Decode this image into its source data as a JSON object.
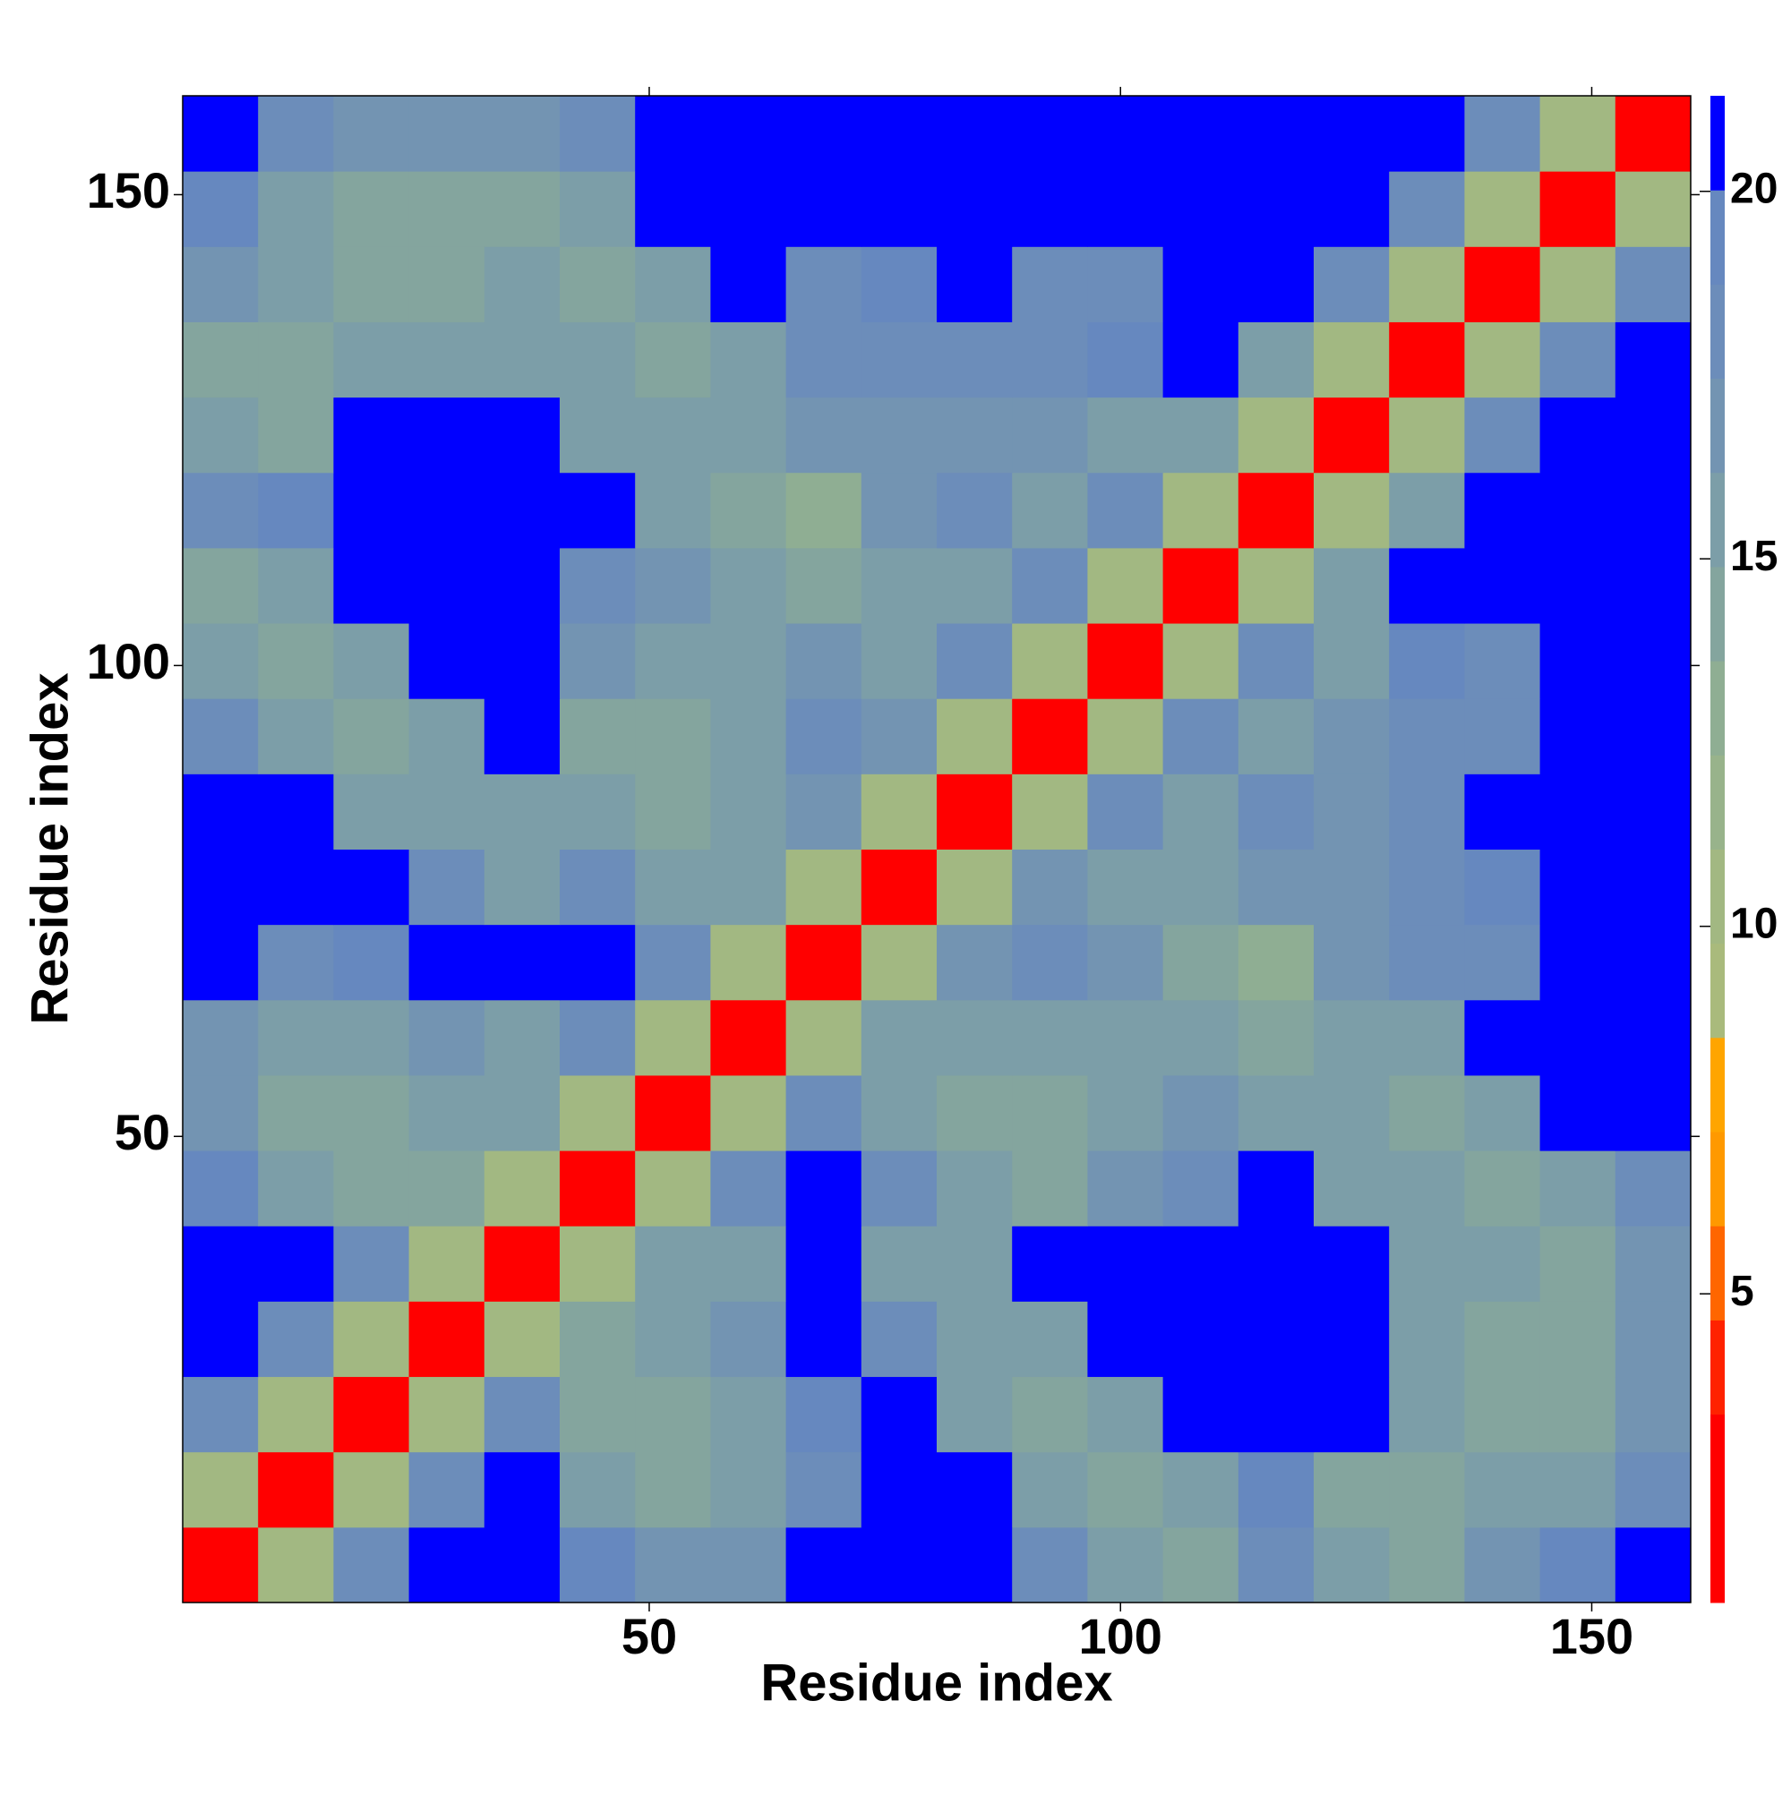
{
  "chart_data": {
    "type": "heatmap",
    "x_label": "Residue index",
    "y_label": "Residue index",
    "x": [
      4.5,
      12.5,
      20.5,
      28.5,
      36.5,
      44.5,
      52.5,
      60.5,
      68.5,
      76.5,
      84.5,
      92.5,
      100.5,
      108.5,
      116.5,
      124.5,
      132.5,
      140.5,
      148.5,
      156.5
    ],
    "y": [
      4.5,
      12.5,
      20.5,
      28.5,
      36.5,
      44.5,
      52.5,
      60.5,
      68.5,
      76.5,
      84.5,
      92.5,
      100.5,
      108.5,
      116.5,
      124.5,
      132.5,
      140.5,
      148.5,
      156.5
    ],
    "z": [
      [
        3,
        11,
        18,
        21,
        21,
        19,
        17,
        17,
        21,
        21,
        21,
        18,
        15,
        14,
        18,
        15,
        14,
        17,
        19,
        21
      ],
      [
        11,
        3,
        11,
        18,
        21,
        16,
        14,
        15,
        18,
        21,
        21,
        15,
        14,
        16,
        19,
        14,
        14,
        15,
        16,
        18
      ],
      [
        18,
        11,
        3,
        11,
        18,
        14,
        14,
        16,
        19,
        21,
        16,
        14,
        15,
        21,
        21,
        21,
        15,
        14,
        14,
        17
      ],
      [
        21,
        18,
        11,
        3,
        11,
        14,
        15,
        17,
        21,
        18,
        15,
        15,
        21,
        21,
        21,
        21,
        16,
        14,
        14,
        17
      ],
      [
        21,
        21,
        18,
        11,
        3,
        11,
        15,
        16,
        21,
        16,
        15,
        21,
        21,
        21,
        21,
        21,
        16,
        15,
        14,
        17
      ],
      [
        19,
        16,
        14,
        14,
        11,
        3,
        11,
        18,
        21,
        18,
        15,
        14,
        17,
        18,
        21,
        16,
        15,
        14,
        15,
        18
      ],
      [
        17,
        14,
        14,
        15,
        15,
        11,
        3,
        11,
        18,
        16,
        14,
        14,
        15,
        17,
        16,
        15,
        14,
        15,
        21,
        21
      ],
      [
        17,
        15,
        16,
        17,
        16,
        18,
        11,
        3,
        11,
        15,
        15,
        15,
        16,
        16,
        14,
        15,
        16,
        21,
        21,
        21
      ],
      [
        21,
        18,
        19,
        21,
        21,
        21,
        18,
        11,
        3,
        11,
        17,
        18,
        17,
        14,
        13,
        17,
        18,
        18,
        21,
        21
      ],
      [
        21,
        21,
        21,
        18,
        16,
        18,
        16,
        15,
        11,
        3,
        11,
        17,
        16,
        16,
        17,
        17,
        18,
        19,
        21,
        21
      ],
      [
        21,
        21,
        16,
        15,
        15,
        15,
        14,
        15,
        17,
        11,
        3,
        11,
        18,
        16,
        18,
        17,
        18,
        21,
        21,
        21
      ],
      [
        18,
        15,
        14,
        15,
        21,
        14,
        14,
        15,
        18,
        17,
        11,
        3,
        11,
        18,
        15,
        17,
        18,
        18,
        21,
        21
      ],
      [
        15,
        14,
        15,
        21,
        21,
        17,
        15,
        16,
        17,
        16,
        18,
        11,
        3,
        11,
        18,
        16,
        19,
        18,
        21,
        21
      ],
      [
        14,
        16,
        21,
        21,
        21,
        18,
        17,
        16,
        14,
        16,
        16,
        18,
        11,
        3,
        11,
        16,
        21,
        21,
        21,
        21
      ],
      [
        18,
        19,
        21,
        21,
        21,
        21,
        16,
        14,
        13,
        17,
        18,
        15,
        18,
        11,
        3,
        11,
        16,
        21,
        21,
        21
      ],
      [
        15,
        14,
        21,
        21,
        21,
        16,
        15,
        15,
        17,
        17,
        17,
        17,
        16,
        16,
        11,
        3,
        11,
        18,
        21,
        21
      ],
      [
        14,
        14,
        15,
        16,
        16,
        15,
        14,
        16,
        18,
        18,
        18,
        18,
        19,
        21,
        16,
        11,
        3,
        11,
        18,
        21
      ],
      [
        17,
        15,
        14,
        14,
        15,
        14,
        15,
        21,
        18,
        19,
        21,
        18,
        18,
        21,
        21,
        18,
        11,
        3,
        11,
        18
      ],
      [
        19,
        16,
        14,
        14,
        14,
        15,
        21,
        21,
        21,
        21,
        21,
        21,
        21,
        21,
        21,
        21,
        18,
        11,
        3,
        11
      ],
      [
        21,
        18,
        17,
        17,
        17,
        18,
        21,
        21,
        21,
        21,
        21,
        21,
        21,
        21,
        21,
        21,
        21,
        18,
        11,
        3
      ]
    ],
    "xlim": [
      0.5,
      160.5
    ],
    "ylim": [
      0.5,
      160.5
    ],
    "xticks": [
      50,
      100,
      150
    ],
    "yticks": [
      50,
      100,
      150
    ],
    "colorbar": {
      "clim": [
        0.8,
        21.3
      ],
      "ticks": [
        5,
        10,
        15,
        20
      ],
      "colors": [
        "#ff0000",
        "#ff0000",
        "#ff2200",
        "#ff6600",
        "#ff9900",
        "#ffa500",
        "#a9ba7c",
        "#a2b882",
        "#98b38b",
        "#8fae93",
        "#84a59e",
        "#7c9ea8",
        "#7394b2",
        "#6c8dba",
        "#6688bf",
        "#0000ff"
      ]
    }
  }
}
